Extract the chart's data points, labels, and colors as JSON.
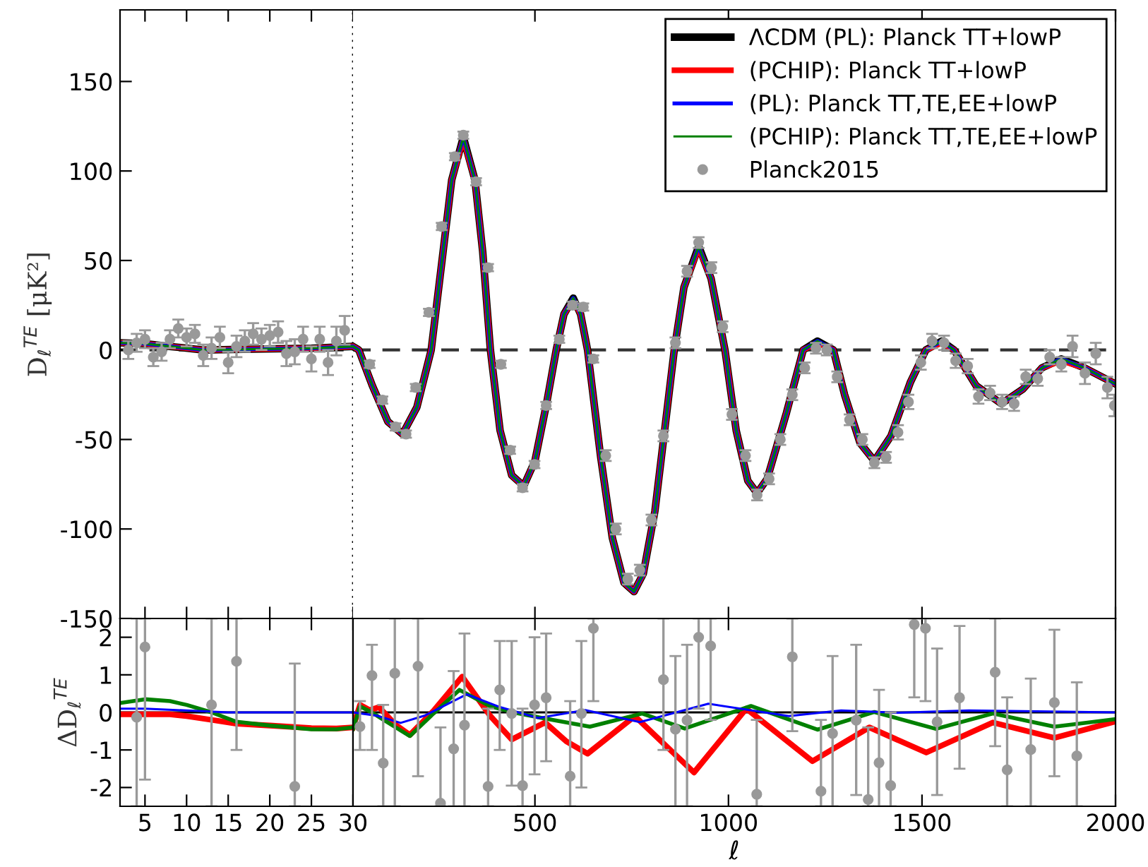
{
  "chart_data": [
    {
      "type": "line",
      "ylabel": "D$_{ℓ}$$^{TE}$ [μK²]",
      "xlim": [
        2,
        30
      ],
      "xticks": [
        5,
        10,
        15,
        20,
        25,
        30
      ],
      "ylim": [
        -150,
        190
      ],
      "yticks": [
        -150,
        -100,
        -50,
        0,
        50,
        100,
        150
      ],
      "tick_labels": "y",
      "x": [
        2,
        5,
        8,
        12,
        18,
        25,
        30
      ],
      "ref_lines": [
        {
          "axis": "y",
          "value": 0,
          "color": "#333333",
          "line_style": "dashed"
        },
        {
          "axis": "x",
          "value": 30,
          "color": "#000000",
          "line_style": "dotted"
        }
      ],
      "series": [
        {
          "color": "#000000",
          "values": [
            4,
            3.5,
            2,
            0,
            0.5,
            1,
            2
          ]
        },
        {
          "color": "#ff0000",
          "values": [
            4,
            3.5,
            2,
            0,
            0.5,
            1,
            2
          ]
        },
        {
          "color": "#0000ff",
          "values": [
            4,
            3.5,
            2,
            0,
            0.5,
            1,
            2
          ]
        },
        {
          "color": "#008000",
          "values": [
            4,
            3.5,
            2,
            0,
            0.5,
            1,
            2
          ]
        },
        {
          "type": "scatter",
          "marker": "circle",
          "color": "#999999",
          "x": [
            3,
            4,
            5,
            6,
            7,
            8,
            9,
            10,
            11,
            12,
            13,
            14,
            15,
            16,
            17,
            18,
            19,
            20,
            21,
            22,
            23,
            24,
            25,
            26,
            27,
            28,
            29
          ],
          "values": [
            0,
            4,
            6,
            -4,
            -1,
            6,
            12,
            7,
            9,
            -3,
            1,
            7,
            -7,
            2,
            5,
            9,
            6,
            8,
            10,
            -2,
            -1,
            6,
            -5,
            6,
            -7,
            5,
            11
          ],
          "errors": [
            5,
            5,
            5,
            5,
            5,
            5,
            5,
            5,
            5,
            6,
            6,
            6,
            6,
            6,
            6,
            6,
            6,
            6,
            6,
            7,
            7,
            7,
            7,
            7,
            7,
            8,
            8
          ]
        }
      ]
    },
    {
      "type": "line",
      "xlim": [
        30,
        2000
      ],
      "xticks": [
        500,
        1000,
        1500,
        2000
      ],
      "ylim": [
        -150,
        190
      ],
      "tick_labels": false,
      "legend": "top right",
      "x": [
        30,
        45,
        80,
        120,
        158,
        195,
        232,
        260,
        285,
        315,
        345,
        365,
        385,
        410,
        440,
        471,
        500,
        530,
        555,
        575,
        599,
        618,
        636,
        670,
        700,
        730,
        756,
        780,
        810,
        835,
        860,
        885,
        923,
        955,
        991,
        1020,
        1050,
        1074,
        1100,
        1150,
        1193,
        1230,
        1271,
        1300,
        1340,
        1377,
        1420,
        1470,
        1510,
        1551,
        1583,
        1640,
        1705,
        1760,
        1810,
        1860,
        1920,
        2000
      ],
      "ref_lines": [
        {
          "axis": "y",
          "value": 0,
          "color": "#333333",
          "line_style": "dashed"
        }
      ],
      "series": [
        {
          "name": "ΛCDM (PL): Planck TT+lowP",
          "color": "#000000",
          "values": [
            2,
            0,
            -20,
            -40,
            -47,
            -32,
            0,
            50,
            95,
            119,
            95,
            55,
            0,
            -45,
            -70,
            -76,
            -62,
            -30,
            0,
            20,
            29,
            20,
            0,
            -60,
            -105,
            -130,
            -135,
            -125,
            -90,
            -45,
            0,
            35,
            58,
            40,
            0,
            -45,
            -73,
            -80,
            -72,
            -35,
            0,
            5,
            0,
            -25,
            -52,
            -62,
            -48,
            -18,
            0,
            5,
            0,
            -20,
            -30,
            -22,
            -10,
            -5,
            -10,
            -19
          ]
        },
        {
          "name": "(PCHIP): Planck TT+lowP",
          "color": "#ff0000",
          "values": [
            2,
            0,
            -20,
            -40,
            -47,
            -32,
            0,
            50,
            95,
            118,
            95,
            55,
            0,
            -45,
            -70,
            -76,
            -62,
            -30,
            0,
            20,
            28,
            20,
            0,
            -60,
            -105,
            -130,
            -135,
            -125,
            -90,
            -45,
            0,
            35,
            57,
            40,
            0,
            -45,
            -73,
            -80,
            -72,
            -35,
            0,
            4,
            0,
            -25,
            -52,
            -62,
            -48,
            -18,
            0,
            4,
            0,
            -20,
            -30,
            -22,
            -10,
            -6,
            -10,
            -19
          ]
        },
        {
          "name": "(PL): Planck TT,TE,EE+lowP",
          "color": "#0000ff",
          "values": [
            2,
            0,
            -20,
            -40,
            -47,
            -32,
            0,
            50,
            95,
            119,
            95,
            55,
            0,
            -45,
            -70,
            -76,
            -62,
            -30,
            0,
            20,
            29,
            20,
            0,
            -60,
            -105,
            -130,
            -135,
            -125,
            -90,
            -45,
            0,
            35,
            58,
            40,
            0,
            -45,
            -73,
            -80,
            -72,
            -35,
            0,
            5,
            0,
            -25,
            -52,
            -62,
            -48,
            -18,
            0,
            5,
            0,
            -20,
            -30,
            -22,
            -10,
            -5,
            -10,
            -19
          ]
        },
        {
          "name": "(PCHIP): Planck TT,TE,EE+lowP",
          "color": "#008000",
          "values": [
            2,
            0,
            -20,
            -40,
            -47,
            -32,
            0,
            50,
            95,
            119,
            95,
            55,
            0,
            -45,
            -70,
            -76,
            -62,
            -30,
            0,
            20,
            29,
            20,
            0,
            -60,
            -105,
            -130,
            -135,
            -125,
            -90,
            -45,
            0,
            35,
            58,
            40,
            0,
            -45,
            -73,
            -80,
            -72,
            -35,
            0,
            5,
            0,
            -25,
            -52,
            -62,
            -48,
            -18,
            0,
            5,
            0,
            -20,
            -30,
            -22,
            -10,
            -5,
            -10,
            -19
          ]
        },
        {
          "name": "Planck2015",
          "type": "scatter",
          "marker": "circle",
          "color": "#999999",
          "x": [
            73,
            106,
            140,
            167,
            192,
            226,
            259,
            293,
            315,
            348,
            379,
            412,
            436,
            468,
            499,
            529,
            563,
            597,
            625,
            651,
            683,
            709,
            740,
            771,
            801,
            832,
            863,
            893,
            923,
            956,
            985,
            1009,
            1044,
            1074,
            1105,
            1134,
            1165,
            1197,
            1226,
            1254,
            1281,
            1313,
            1346,
            1377,
            1407,
            1438,
            1465,
            1497,
            1526,
            1557,
            1587,
            1618,
            1646,
            1676,
            1707,
            1738,
            1768,
            1799,
            1830,
            1860,
            1889,
            1921,
            1949,
            1979,
            1997
          ],
          "values": [
            -8,
            -28,
            -43,
            -47,
            -21,
            21,
            69,
            108,
            120,
            94,
            46,
            -8,
            -56,
            -77,
            -64,
            -31,
            6,
            25,
            24,
            -5,
            -59,
            -100,
            -128,
            -123,
            -95,
            -48,
            4,
            44,
            60,
            46,
            13,
            -36,
            -59,
            -81,
            -72,
            -50,
            -25,
            -10,
            1,
            0,
            -15,
            -39,
            -50,
            -63,
            -60,
            -46,
            -29,
            -7,
            5,
            4,
            -6,
            -9,
            -26,
            -24,
            -29,
            -30,
            -15,
            -16,
            -4,
            -8,
            2,
            -13,
            -2,
            -21,
            -31
          ],
          "errors": [
            2,
            2,
            2,
            2,
            2,
            2,
            2,
            2,
            2,
            2,
            2,
            2,
            2,
            2,
            2,
            2,
            2,
            2,
            2,
            2,
            3,
            3,
            3,
            3,
            3,
            3,
            3,
            3,
            3,
            3,
            3,
            3,
            3,
            3,
            3,
            3,
            3,
            3,
            3,
            3,
            3,
            3,
            3,
            3,
            3,
            4,
            4,
            4,
            4,
            4,
            4,
            4,
            4,
            4,
            4,
            4,
            4,
            4,
            4,
            4,
            6,
            6,
            6,
            6,
            6
          ]
        }
      ]
    },
    {
      "type": "line",
      "ylabel": "ΔD$_{ℓ}$$^{TE}$",
      "xlim": [
        2,
        30
      ],
      "xticks": [
        5,
        10,
        15,
        20,
        25,
        30
      ],
      "ylim": [
        -2.5,
        2.5
      ],
      "yticks": [
        -2,
        -1,
        0,
        1,
        2
      ],
      "ref_lines": [
        {
          "axis": "y",
          "value": 0,
          "color": "#000000",
          "line_style": "solid"
        }
      ],
      "series": [
        {
          "color": "#ff0000",
          "x": [
            2,
            5,
            8,
            10,
            13,
            16,
            20,
            25,
            28,
            30
          ],
          "values": [
            -0.05,
            -0.05,
            -0.05,
            -0.1,
            -0.2,
            -0.3,
            -0.35,
            -0.42,
            -0.43,
            -0.4
          ]
        },
        {
          "color": "#008000",
          "x": [
            2,
            5,
            8,
            10,
            13,
            16,
            20,
            25,
            28,
            30
          ],
          "values": [
            0.25,
            0.35,
            0.3,
            0.2,
            0,
            -0.25,
            -0.35,
            -0.45,
            -0.45,
            -0.4
          ]
        },
        {
          "color": "#0000ff",
          "x": [
            2,
            5,
            10,
            15,
            30
          ],
          "values": [
            0.1,
            0.1,
            0.05,
            0,
            0
          ]
        },
        {
          "type": "scatter",
          "marker": "circle",
          "color": "#999999",
          "x": [
            4,
            5,
            13,
            16,
            23
          ],
          "values": [
            -0.13,
            1.74,
            0.2,
            1.36,
            -1.97
          ],
          "errors": [
            [
              -2.5,
              2.5
            ],
            [
              -1.79,
              2.5
            ],
            [
              -2.5,
              2.5
            ],
            [
              -1.0,
              2.5
            ],
            [
              -2.5,
              1.3
            ]
          ]
        }
      ]
    },
    {
      "type": "line",
      "xlabel": "ℓ",
      "xlim": [
        30,
        2000
      ],
      "xticks": [
        500,
        1000,
        1500,
        2000
      ],
      "ylim": [
        -2.5,
        2.5
      ],
      "tick_labels": "x",
      "ref_lines": [
        {
          "axis": "y",
          "value": 0,
          "color": "#000000",
          "line_style": "solid"
        }
      ],
      "series": [
        {
          "color": "#ff0000",
          "x": [
            30,
            48,
            73,
            97,
            140,
            177,
            238,
            312,
            385,
            440,
            526,
            581,
            636,
            758,
            911,
            1046,
            1217,
            1364,
            1511,
            1683,
            1842,
            2000
          ],
          "values": [
            -0.4,
            0.2,
            0.06,
            0.14,
            -0.33,
            -0.6,
            0.04,
            0.95,
            -0.1,
            -0.72,
            -0.27,
            -0.77,
            -1.1,
            -0.1,
            -1.6,
            0.1,
            -1.3,
            -0.4,
            -1.07,
            -0.27,
            -0.68,
            -0.24
          ]
        },
        {
          "color": "#008000",
          "x": [
            30,
            48,
            79,
            101,
            177,
            238,
            305,
            385,
            458,
            519,
            642,
            777,
            887,
            1058,
            1230,
            1377,
            1536,
            1683,
            1842,
            2000
          ],
          "values": [
            -0.44,
            0.16,
            0,
            -0.15,
            -0.63,
            -0.03,
            0.6,
            0.16,
            -0.03,
            -0.15,
            -0.38,
            -0.03,
            -0.43,
            0.17,
            -0.46,
            0.01,
            -0.44,
            -0.03,
            -0.38,
            -0.18
          ]
        },
        {
          "color": "#0000ff",
          "x": [
            30,
            92,
            153,
            214,
            324,
            410,
            508,
            630,
            771,
            948,
            1156,
            1291,
            1438,
            1621,
            2000
          ],
          "values": [
            0,
            -0.09,
            -0.28,
            -0.09,
            0.48,
            0.14,
            -0.15,
            0.06,
            -0.26,
            0.23,
            -0.1,
            0.05,
            -0.01,
            0.05,
            0
          ]
        },
        {
          "type": "scatter",
          "marker": "circle",
          "color": "#999999",
          "x": [
            48,
            79,
            108,
            138,
            198,
            256,
            290,
            318,
            379,
            409,
            440,
            468,
            499,
            529,
            591,
            620,
            651,
            832,
            863,
            893,
            923,
            954,
            1073,
            1165,
            1239,
            1269,
            1330,
            1361,
            1389,
            1419,
            1480,
            1509,
            1539,
            1597,
            1689,
            1720,
            1781,
            1842,
            1900
          ],
          "values": [
            -0.38,
            0.98,
            -1.35,
            1.04,
            1.23,
            -2.42,
            -0.97,
            -0.34,
            -1.97,
            0.6,
            -0.03,
            -1.95,
            0.2,
            0.39,
            -1.7,
            -0.03,
            2.24,
            0.87,
            -0.45,
            -0.21,
            2.0,
            1.77,
            -2.18,
            1.48,
            -2.1,
            -0.56,
            -0.21,
            -2.32,
            -1.34,
            -1.95,
            2.34,
            2.24,
            -0.25,
            0.39,
            1.07,
            -1.53,
            -0.99,
            0.26,
            -1.16
          ],
          "errors": [
            [
              -1.0,
              0.3
            ],
            [
              -1.0,
              1.8
            ],
            [
              -2.5,
              0.2
            ],
            [
              -2.5,
              2.5
            ],
            [
              -1.7,
              2.5
            ],
            [
              -2.5,
              -0.4
            ],
            [
              -2.5,
              1.1
            ],
            [
              -2.5,
              2.1
            ],
            [
              -2.5,
              0.1
            ],
            [
              -1.0,
              1.9
            ],
            [
              -1.95,
              1.9
            ],
            [
              -2.5,
              0.1
            ],
            [
              -1.65,
              2.0
            ],
            [
              -1.3,
              2.1
            ],
            [
              -2.5,
              0.3
            ],
            [
              -2.0,
              1.9
            ],
            [
              0.3,
              2.5
            ],
            [
              -1.0,
              2.5
            ],
            [
              -2.5,
              1.5
            ],
            [
              -2.5,
              1.8
            ],
            [
              0.1,
              2.5
            ],
            [
              -0.2,
              2.5
            ],
            [
              -2.5,
              -0.2
            ],
            [
              -0.5,
              2.5
            ],
            [
              -2.5,
              -0.2
            ],
            [
              -2.5,
              1.5
            ],
            [
              -2.2,
              1.8
            ],
            [
              -2.5,
              -0.4
            ],
            [
              -2.5,
              0.6
            ],
            [
              -2.5,
              0.0
            ],
            [
              0.4,
              2.5
            ],
            [
              0.3,
              2.5
            ],
            [
              -2.2,
              1.7
            ],
            [
              -1.5,
              2.3
            ],
            [
              -0.9,
              2.5
            ],
            [
              -2.5,
              0.4
            ],
            [
              -2.5,
              0.9
            ],
            [
              -1.7,
              2.2
            ],
            [
              -2.5,
              0.8
            ]
          ]
        }
      ]
    }
  ]
}
